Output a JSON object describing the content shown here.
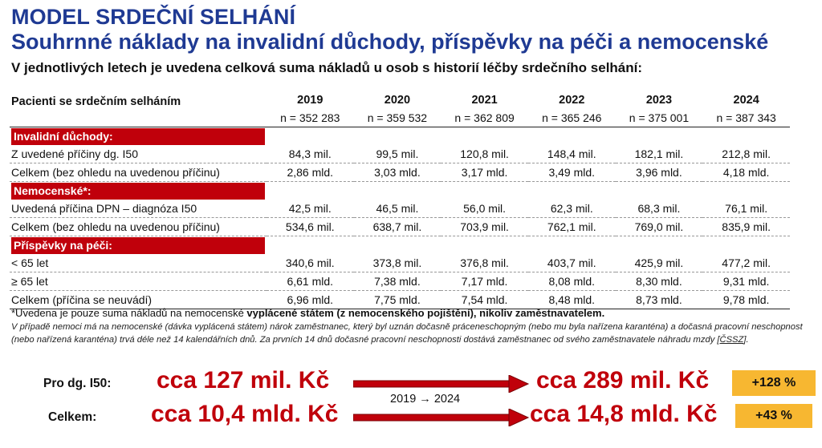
{
  "titles": {
    "line1": "MODEL SRDEČNÍ SELHÁNÍ",
    "line2": "Souhrnné náklady na invalidní důchody, příspěvky na péči a nemocenské",
    "subtitle": "V jednotlivých letech je uvedena celková suma nákladů u osob s historií léčby srdečního selhání:"
  },
  "table": {
    "header_label": "Pacienti se srdečním selháním",
    "years": [
      "2019",
      "2020",
      "2021",
      "2022",
      "2023",
      "2024"
    ],
    "counts": [
      "n = 352 283",
      "n = 359 532",
      "n = 362 809",
      "n = 365 246",
      "n = 375 001",
      "n = 387 343"
    ],
    "sections": [
      {
        "title": "Invalidní důchody:",
        "rows": [
          {
            "label": "Z uvedené příčiny dg. I50",
            "values": [
              "84,3 mil.",
              "99,5 mil.",
              "120,8 mil.",
              "148,4 mil.",
              "182,1 mil.",
              "212,8 mil."
            ]
          },
          {
            "label": "Celkem (bez ohledu na uvedenou příčinu)",
            "values": [
              "2,86 mld.",
              "3,03 mld.",
              "3,17 mld.",
              "3,49 mld.",
              "3,96 mld.",
              "4,18 mld."
            ]
          }
        ]
      },
      {
        "title": "Nemocenské*:",
        "rows": [
          {
            "label": "Uvedená příčina DPN – diagnóza I50",
            "values": [
              "42,5 mil.",
              "46,5 mil.",
              "56,0 mil.",
              "62,3 mil.",
              "68,3 mil.",
              "76,1 mil."
            ]
          },
          {
            "label": "Celkem (bez ohledu na uvedenou příčinu)",
            "values": [
              "534,6 mil.",
              "638,7 mil.",
              "703,9 mil.",
              "762,1 mil.",
              "769,0 mil.",
              "835,9 mil."
            ]
          }
        ]
      },
      {
        "title": "Příspěvky na péči:",
        "rows": [
          {
            "label": "< 65 let",
            "values": [
              "340,6 mil.",
              "373,8 mil.",
              "376,8 mil.",
              "403,7 mil.",
              "425,9 mil.",
              "477,2 mil."
            ]
          },
          {
            "label": "≥ 65 let",
            "values": [
              "6,61 mld.",
              "7,38 mld.",
              "7,17 mld.",
              "8,08 mld.",
              "8,30 mld.",
              "9,31 mld."
            ]
          },
          {
            "label": "Celkem (příčina se neuvádí)",
            "values": [
              "6,96 mld.",
              "7,75 mld.",
              "7,54 mld.",
              "8,48 mld.",
              "8,73 mld.",
              "9,78 mld."
            ]
          }
        ]
      }
    ]
  },
  "footnotes": {
    "note1_plain": "*Uvedena je pouze suma nákladů na nemocenské ",
    "note1_bold": "vyplácené státem (z nemocenského pojištění), nikoliv zaměstnavatelem.",
    "note2_main": "V případě nemoci má na nemocenské (dávka vyplácená státem) nárok zaměstnanec, který byl uznán dočasně práceneschopným (nebo mu byla nařízena karanténa) a dočasná pracovní neschopnost (nebo nařízená karanténa) trvá déle než 14 kalendářních dnů. Za prvních 14 dnů dočasné pracovní neschopnosti dostává zaměstnanec od svého zaměstnavatele náhradu mzdy [",
    "note2_link": "ČSSZ",
    "note2_end": "]."
  },
  "summary": {
    "period": "2019 → 2024",
    "rows": [
      {
        "label": "Pro dg. I50:",
        "from": "cca 127 mil. Kč",
        "to": "cca 289 mil. Kč",
        "change": "+128 %"
      },
      {
        "label": "Celkem:",
        "from": "cca 10,4 mld. Kč",
        "to": "cca 14,8 mld. Kč",
        "change": "+43 %"
      }
    ]
  },
  "colors": {
    "title": "#1f3a93",
    "accent_red": "#c0000b",
    "badge": "#f7b731"
  }
}
